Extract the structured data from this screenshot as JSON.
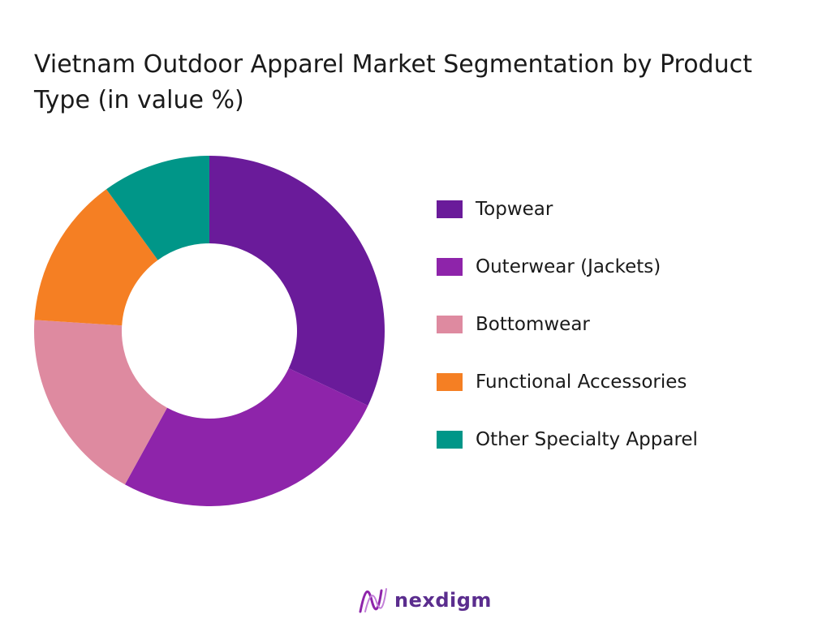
{
  "chart_data": {
    "type": "pie",
    "title": "Vietnam Outdoor Apparel Market Segmentation by Product Type (in value %)",
    "categories": [
      "Topwear",
      "Outerwear (Jackets)",
      "Bottomwear",
      "Functional Accessories",
      "Other Specialty Apparel"
    ],
    "values": [
      32,
      26,
      18,
      14,
      10
    ],
    "colors": [
      "#6a1b9a",
      "#8e24aa",
      "#de8aa0",
      "#f57f23",
      "#009688"
    ],
    "legend_position": "right"
  },
  "brand": {
    "name": "nexdigm",
    "color": "#5b2d8e"
  }
}
